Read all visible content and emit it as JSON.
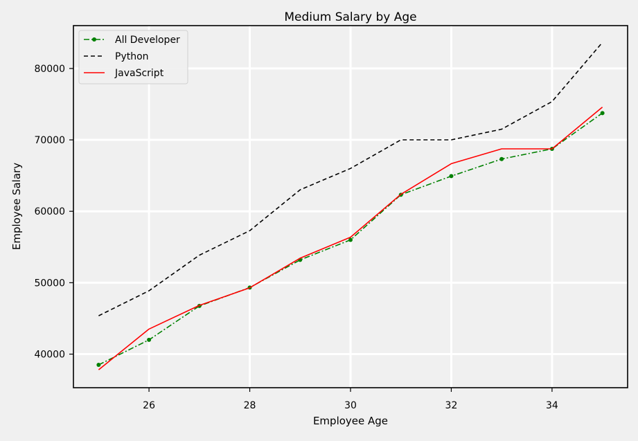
{
  "chart_data": {
    "type": "line",
    "title": "Medium Salary by Age",
    "xlabel": "Employee Age",
    "ylabel": "Employee Salary",
    "xlim": [
      24.5,
      35.5
    ],
    "ylim": [
      35300,
      86000
    ],
    "xticks": [
      26,
      28,
      30,
      32,
      34
    ],
    "yticks": [
      40000,
      50000,
      60000,
      70000,
      80000
    ],
    "grid": true,
    "legend_position": "top-left",
    "x": [
      25,
      26,
      27,
      28,
      29,
      30,
      31,
      32,
      33,
      34,
      35
    ],
    "series": [
      {
        "name": "All Developer",
        "color": "#008000",
        "style": "dashdot",
        "marker": "dot",
        "values": [
          38496,
          42000,
          46752,
          49320,
          53200,
          56000,
          62316,
          64928,
          67317,
          68748,
          73752
        ]
      },
      {
        "name": "Python",
        "color": "#000000",
        "style": "dashed",
        "marker": "none",
        "values": [
          45372,
          48876,
          53850,
          57287,
          63016,
          65998,
          70003,
          70000,
          71496,
          75370,
          83640
        ]
      },
      {
        "name": "JavaScript",
        "color": "#ff0000",
        "style": "solid",
        "marker": "none",
        "values": [
          37810,
          43515,
          46823,
          49293,
          53437,
          56373,
          62375,
          66674,
          68745,
          68746,
          74583
        ]
      }
    ]
  }
}
